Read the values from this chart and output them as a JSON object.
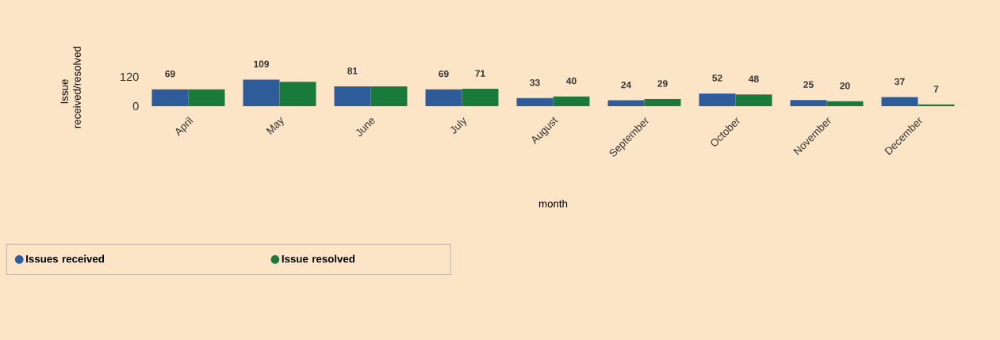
{
  "chart_data": {
    "type": "bar",
    "xlabel": "month",
    "ylabel": "Issue received/resolved",
    "categories": [
      "April",
      "May",
      "June",
      "July",
      "August",
      "September",
      "October",
      "November",
      "December"
    ],
    "series": [
      {
        "name": "Issues received",
        "color": "#2e5c9a",
        "values": [
          69,
          109,
          81,
          69,
          33,
          24,
          52,
          25,
          37
        ],
        "value_labels": [
          "69",
          "109",
          "81",
          "69",
          "33",
          "24",
          "52",
          "25",
          "37"
        ]
      },
      {
        "name": "Issue resolved",
        "color": "#1a7a3c",
        "values": [
          69,
          100,
          81,
          71,
          40,
          29,
          48,
          20,
          7
        ],
        "value_labels": [
          null,
          null,
          null,
          "71",
          "40",
          "29",
          "48",
          "20",
          "7"
        ]
      }
    ],
    "ylim": [
      0,
      120
    ],
    "yticks": [
      0,
      120
    ],
    "legend": "bottom left"
  }
}
